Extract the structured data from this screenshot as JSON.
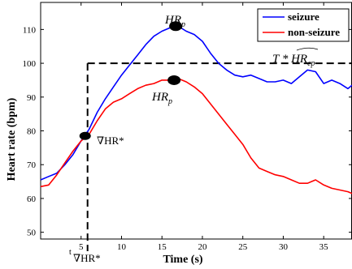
{
  "chart_data": {
    "type": "line",
    "xlabel": "Time (s)",
    "ylabel": "Heart rate (bpm)",
    "xlim": [
      0,
      38.5
    ],
    "ylim": [
      48,
      118
    ],
    "xticks": [
      5,
      10,
      15,
      20,
      25,
      30,
      35
    ],
    "yticks": [
      50,
      60,
      70,
      80,
      90,
      100,
      110
    ],
    "legend": {
      "placement": "top-right"
    },
    "series": [
      {
        "name": "seizure",
        "color": "#0000ff",
        "x": [
          0,
          1,
          2,
          3,
          4,
          5,
          6,
          7,
          8,
          9,
          10,
          11,
          12,
          13,
          14,
          15,
          16,
          17,
          18,
          19,
          20,
          21,
          22,
          23,
          24,
          25,
          26,
          27,
          28,
          29,
          30,
          31,
          32,
          33,
          34,
          35,
          36,
          37,
          38,
          38.5
        ],
        "y": [
          65.5,
          66.5,
          67.5,
          70,
          73,
          77,
          80.5,
          85.5,
          89.5,
          93,
          96.5,
          99.5,
          102.5,
          105.5,
          108,
          109.5,
          110.5,
          111,
          109.5,
          108.5,
          106.5,
          103,
          100,
          98,
          96.5,
          96,
          96.5,
          95.5,
          94.5,
          94.5,
          95,
          94,
          96,
          98,
          97.5,
          94,
          95,
          94,
          92.5,
          93.5
        ]
      },
      {
        "name": "non-seizure",
        "color": "#ff0000",
        "x": [
          0,
          1,
          2,
          3,
          4,
          5,
          6,
          7,
          8,
          9,
          10,
          11,
          12,
          13,
          14,
          15,
          16,
          17,
          18,
          19,
          20,
          21,
          22,
          23,
          24,
          25,
          26,
          27,
          28,
          29,
          30,
          31,
          32,
          33,
          34,
          35,
          36,
          37,
          38,
          38.5
        ],
        "y": [
          63.5,
          64,
          67,
          70.5,
          74,
          77,
          79,
          83,
          86.5,
          88.5,
          89.5,
          91,
          92.5,
          93.5,
          94,
          95,
          95,
          95.5,
          94.5,
          93,
          91,
          88,
          85,
          82,
          79,
          76,
          72,
          69,
          68,
          67,
          66.5,
          65.5,
          64.5,
          64.5,
          65.5,
          64,
          63,
          62.5,
          62,
          61.5
        ]
      }
    ],
    "threshold": {
      "y": 100,
      "x_start": 5.8,
      "x_end": 38.5
    },
    "onset_marker": {
      "x": 5.5,
      "y": 78.5
    },
    "peak_markers": [
      {
        "series": "seizure",
        "x": 16.7,
        "y": 111
      },
      {
        "series": "non-seizure",
        "x": 16.5,
        "y": 95
      }
    ],
    "annotations": {
      "peak_label_base": "HR",
      "peak_label_sub": "p",
      "threshold_label": "T * HR",
      "threshold_label_sub": "ep",
      "onset_label": "∇HR*",
      "onset_axis_label_t": "t",
      "onset_axis_label": "∇HR*"
    }
  }
}
